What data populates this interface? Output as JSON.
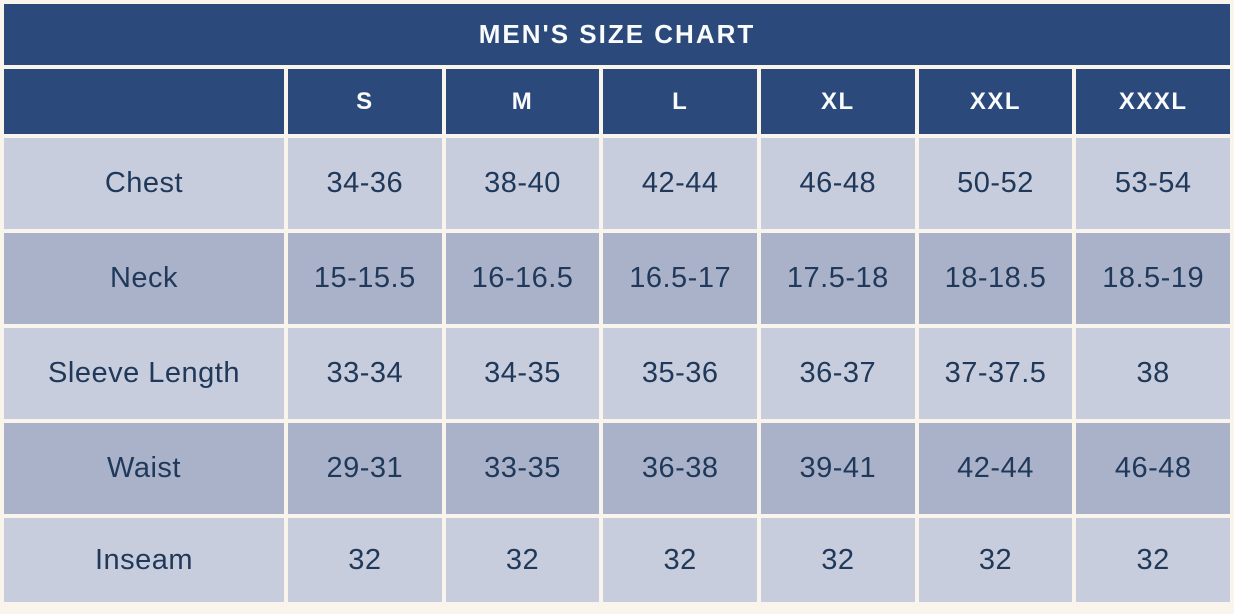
{
  "colors": {
    "header_navy": "#2b4a7b",
    "row_light": "#c7cddc",
    "row_dark": "#aab2ca",
    "cell_text": "#20395a",
    "header_text": "#fafbfc",
    "page_background": "#faf5ec",
    "cell_gap": "#fdfcf8"
  },
  "table": {
    "title": "MEN'S SIZE CHART",
    "sizes": [
      "S",
      "M",
      "L",
      "XL",
      "XXL",
      "XXXL"
    ],
    "rows": [
      {
        "label": "Chest",
        "values": [
          "34-36",
          "38-40",
          "42-44",
          "46-48",
          "50-52",
          "53-54"
        ]
      },
      {
        "label": "Neck",
        "values": [
          "15-15.5",
          "16-16.5",
          "16.5-17",
          "17.5-18",
          "18-18.5",
          "18.5-19"
        ]
      },
      {
        "label": "Sleeve Length",
        "values": [
          "33-34",
          "34-35",
          "35-36",
          "36-37",
          "37-37.5",
          "38"
        ]
      },
      {
        "label": "Waist",
        "values": [
          "29-31",
          "33-35",
          "36-38",
          "39-41",
          "42-44",
          "46-48"
        ]
      },
      {
        "label": "Inseam",
        "values": [
          "32",
          "32",
          "32",
          "32",
          "32",
          "32"
        ]
      }
    ]
  },
  "chart_data": {
    "type": "table",
    "title": "MEN'S SIZE CHART",
    "columns": [
      "",
      "S",
      "M",
      "L",
      "XL",
      "XXL",
      "XXXL"
    ],
    "rows": [
      [
        "Chest",
        "34-36",
        "38-40",
        "42-44",
        "46-48",
        "50-52",
        "53-54"
      ],
      [
        "Neck",
        "15-15.5",
        "16-16.5",
        "16.5-17",
        "17.5-18",
        "18-18.5",
        "18.5-19"
      ],
      [
        "Sleeve Length",
        "33-34",
        "34-35",
        "35-36",
        "36-37",
        "37-37.5",
        "38"
      ],
      [
        "Waist",
        "29-31",
        "33-35",
        "36-38",
        "39-41",
        "42-44",
        "46-48"
      ],
      [
        "Inseam",
        "32",
        "32",
        "32",
        "32",
        "32",
        "32"
      ]
    ]
  }
}
